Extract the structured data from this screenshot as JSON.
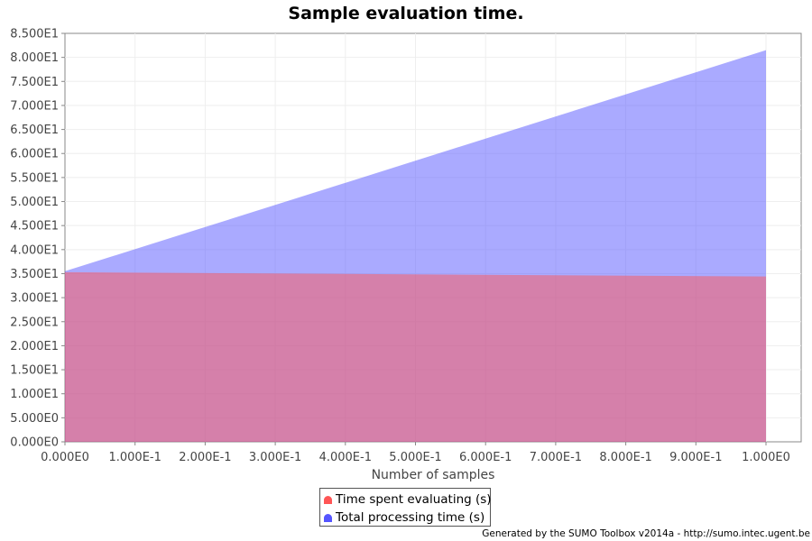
{
  "chart_data": {
    "type": "area",
    "title": "Sample evaluation time.",
    "xlabel": "Number of samples",
    "ylabel": "",
    "xlim": [
      0,
      1
    ],
    "ylim": [
      0,
      85
    ],
    "x_ticks": [
      "0.000E0",
      "1.000E-1",
      "2.000E-1",
      "3.000E-1",
      "4.000E-1",
      "5.000E-1",
      "6.000E-1",
      "7.000E-1",
      "8.000E-1",
      "9.000E-1",
      "1.000E0"
    ],
    "y_ticks": [
      "0.000E0",
      "5.000E0",
      "1.000E1",
      "1.500E1",
      "2.000E1",
      "2.500E1",
      "3.000E1",
      "3.500E1",
      "4.000E1",
      "4.500E1",
      "5.000E1",
      "5.500E1",
      "6.000E1",
      "6.500E1",
      "7.000E1",
      "7.500E1",
      "8.000E1",
      "8.500E1"
    ],
    "grid": true,
    "legend_position": "bottom",
    "series": [
      {
        "name": "Total processing time (s)",
        "color": "#5555ff",
        "x": [
          0,
          1
        ],
        "values": [
          35.5,
          81.5
        ]
      },
      {
        "name": "Time spent evaluating (s)",
        "color": "#ff5555",
        "x": [
          0,
          1
        ],
        "values": [
          35.3,
          34.4
        ]
      }
    ]
  },
  "footer": "Generated by the SUMO Toolbox v2014a - http://sumo.intec.ugent.be"
}
